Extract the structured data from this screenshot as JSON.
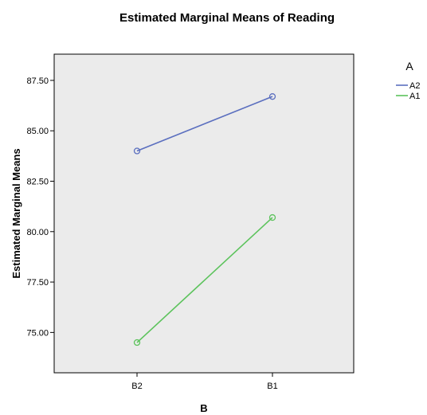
{
  "chart_data": {
    "type": "line",
    "title": "Estimated Marginal Means of Reading",
    "xlabel": "B",
    "ylabel": "Estimated Marginal Means",
    "categories": [
      "B2",
      "B1"
    ],
    "yticks": [
      "75.00",
      "77.50",
      "80.00",
      "82.50",
      "85.00",
      "87.50"
    ],
    "ylim": [
      73.0,
      88.8
    ],
    "legend_title": "A",
    "legend_position": "top-right-outside",
    "grid": false,
    "plot_background": "#ebebeb",
    "series": [
      {
        "name": "A2",
        "color": "#5b6fbf",
        "values": [
          84.0,
          86.7
        ]
      },
      {
        "name": "A1",
        "color": "#5cc35c",
        "values": [
          74.5,
          80.7
        ]
      }
    ]
  }
}
